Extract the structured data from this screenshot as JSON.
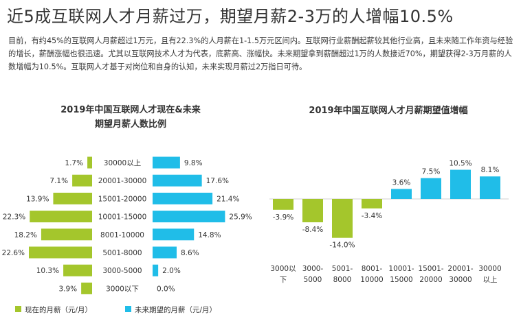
{
  "headline": "近5成互联网人才月薪过万，期望月薪2-3万的人增幅10.5%",
  "intro": "目前，有约45%的互联网人月薪超过1万元，且有22.3%的人月薪在1-1.5万元区间内。互联网行业薪酬起薪较其他行业高，且未来随工作年资与经验的增长，薪酬涨幅也很迅速。尤其以互联网技术人才为代表，底薪高、涨幅快。未来期望拿到薪酬超过1万的人数接近70%，期望获得2-3万月薪的人数增幅为10.5%。互联网人才基于对岗位和自身的认知，未来实现月薪过2万指日可待。",
  "colors": {
    "current": "#a4c62c",
    "future": "#20bde8"
  },
  "chart_data": [
    {
      "type": "bar",
      "orientation": "horizontal-butterfly",
      "title_lines": [
        "2019年中国互联网人才现在&未来",
        "期望月薪人数比例"
      ],
      "categories": [
        "30000以上",
        "20001-30000",
        "15001-20000",
        "10001-15000",
        "8001-10000",
        "5001-8000",
        "3000-5000",
        "3000以下"
      ],
      "series": [
        {
          "name": "现在的月薪（元/月）",
          "values": [
            1.7,
            7.1,
            13.9,
            22.3,
            18.2,
            22.6,
            10.3,
            3.9
          ],
          "labels": [
            "1.7%",
            "7.1%",
            "13.9%",
            "22.3%",
            "18.2%",
            "22.6%",
            "10.3%",
            "3.9%"
          ]
        },
        {
          "name": "未来期望的月薪（元/月）",
          "values": [
            9.8,
            17.6,
            21.4,
            25.9,
            14.8,
            8.6,
            2.0,
            0.0
          ],
          "labels": [
            "9.8%",
            "17.6%",
            "21.4%",
            "25.9%",
            "14.8%",
            "8.6%",
            "2.0%",
            "0.0%"
          ]
        }
      ],
      "legend": [
        "现在的月薪（元/月）",
        "未来期望的月薪（元/月）"
      ]
    },
    {
      "type": "bar",
      "title": "2019年中国互联网人才月薪期望值增幅",
      "categories": [
        [
          "3000以",
          "下"
        ],
        [
          "3000-",
          "5000"
        ],
        [
          "5001-",
          "8000"
        ],
        [
          "8001-",
          "10000"
        ],
        [
          "10001-",
          "15000"
        ],
        [
          "15001-",
          "20000"
        ],
        [
          "20001-",
          "30000"
        ],
        [
          "30000",
          "以上"
        ]
      ],
      "values": [
        -3.9,
        -8.4,
        -14.0,
        -3.4,
        3.6,
        7.5,
        10.5,
        8.1
      ],
      "labels": [
        "-3.9%",
        "-8.4%",
        "-14.0%",
        "-3.4%",
        "3.6%",
        "7.5%",
        "10.5%",
        "8.1%"
      ],
      "colors_by_sign": {
        "negative": "#a4c62c",
        "positive": "#20bde8"
      }
    }
  ]
}
